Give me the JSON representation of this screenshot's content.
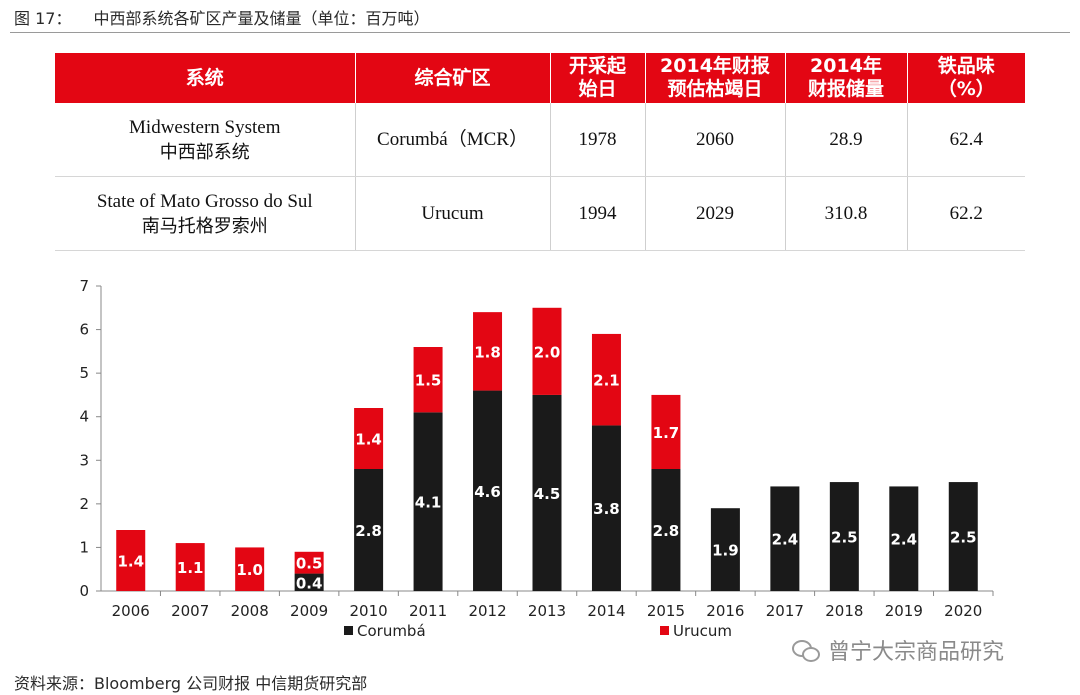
{
  "figure": {
    "label": "图 17：",
    "title": "中西部系统各矿区产量及储量（单位：百万吨）"
  },
  "table": {
    "headers": [
      "系统",
      "综合矿区",
      "开采起\n始日",
      "2014年财报\n预估枯竭日",
      "2014年\n财报储量",
      "铁品味\n（%）"
    ],
    "rows": [
      {
        "system_en": "Midwestern System",
        "system_zh": "中西部系统",
        "complex": "Corumbá（MCR）",
        "start": "1978",
        "depletion": "2060",
        "reserve": "28.9",
        "grade": "62.4"
      },
      {
        "system_en": "State of Mato Grosso do Sul",
        "system_zh": "南马托格罗索州",
        "complex": "Urucum",
        "start": "1994",
        "depletion": "2029",
        "reserve": "310.8",
        "grade": "62.2"
      }
    ]
  },
  "chart_data": {
    "type": "bar",
    "stacked": true,
    "categories": [
      "2006",
      "2007",
      "2008",
      "2009",
      "2010",
      "2011",
      "2012",
      "2013",
      "2014",
      "2015",
      "2016",
      "2017",
      "2018",
      "2019",
      "2020"
    ],
    "series": [
      {
        "name": "Corumbá",
        "color": "#1a1a1a",
        "values": [
          0,
          0,
          0,
          0.4,
          2.8,
          4.1,
          4.6,
          4.5,
          3.8,
          2.8,
          1.9,
          2.4,
          2.5,
          2.4,
          2.5
        ]
      },
      {
        "name": "Urucum",
        "color": "#e30613",
        "values": [
          1.4,
          1.1,
          1.0,
          0.5,
          1.4,
          1.5,
          1.8,
          2.0,
          2.1,
          1.7,
          0,
          0,
          0,
          0,
          0
        ]
      }
    ],
    "ylim": [
      0,
      7
    ],
    "yticks": [
      0,
      1,
      2,
      3,
      4,
      5,
      6,
      7
    ],
    "grid": false,
    "legend_position": "bottom"
  },
  "source": "资料来源：Bloomberg 公司财报 中信期货研究部",
  "watermark": "曾宁大宗商品研究"
}
